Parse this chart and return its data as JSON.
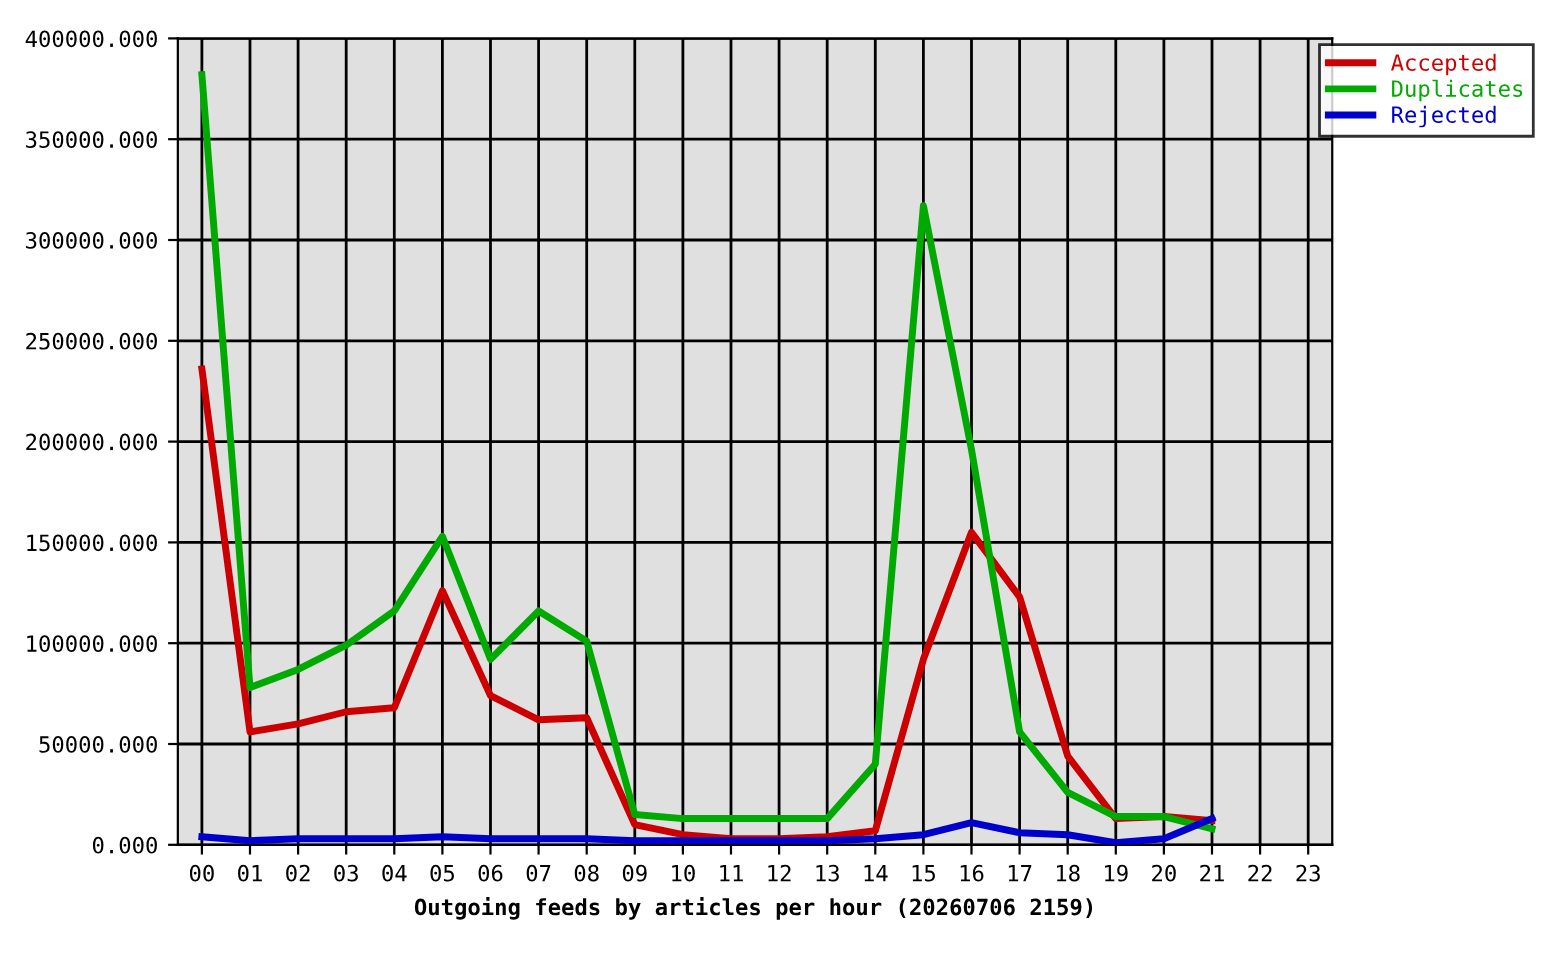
{
  "chart_data": {
    "type": "line",
    "xlabel": "Outgoing feeds by articles per hour (20260706 2159)",
    "categories": [
      "00",
      "01",
      "02",
      "03",
      "04",
      "05",
      "06",
      "07",
      "08",
      "09",
      "10",
      "11",
      "12",
      "13",
      "14",
      "15",
      "16",
      "17",
      "18",
      "19",
      "20",
      "21",
      "22",
      "23"
    ],
    "series": [
      {
        "name": "Accepted",
        "color": "#cc0000",
        "values": [
          236000,
          56000,
          60000,
          66000,
          68000,
          126000,
          74000,
          62000,
          63000,
          10000,
          5000,
          3000,
          3000,
          4000,
          7000,
          92000,
          155000,
          123000,
          44000,
          13000,
          14000,
          12000,
          null,
          null
        ]
      },
      {
        "name": "Duplicates",
        "color": "#00aa00",
        "values": [
          382000,
          78000,
          87000,
          99000,
          116000,
          153000,
          92000,
          116000,
          101000,
          15000,
          13000,
          13000,
          13000,
          13000,
          40000,
          317000,
          196000,
          56000,
          26000,
          14000,
          14000,
          8000,
          null,
          null
        ]
      },
      {
        "name": "Rejected",
        "color": "#0000cc",
        "values": [
          4000,
          2000,
          3000,
          3000,
          3000,
          4000,
          3000,
          3000,
          3000,
          2000,
          2000,
          2000,
          2000,
          2000,
          3000,
          5000,
          11000,
          6000,
          5000,
          1000,
          3000,
          13000,
          null,
          null
        ]
      }
    ],
    "ylim": [
      0,
      400000
    ],
    "yticks": [
      {
        "value": 0,
        "label": "0.000"
      },
      {
        "value": 50000,
        "label": "50000.000"
      },
      {
        "value": 100000,
        "label": "100000.000"
      },
      {
        "value": 150000,
        "label": "150000.000"
      },
      {
        "value": 200000,
        "label": "200000.000"
      },
      {
        "value": 250000,
        "label": "250000.000"
      },
      {
        "value": 300000,
        "label": "300000.000"
      },
      {
        "value": 350000,
        "label": "350000.000"
      },
      {
        "value": 400000,
        "label": "400000.000"
      }
    ],
    "grid": true,
    "legend": "top right",
    "line_style": "solid"
  }
}
